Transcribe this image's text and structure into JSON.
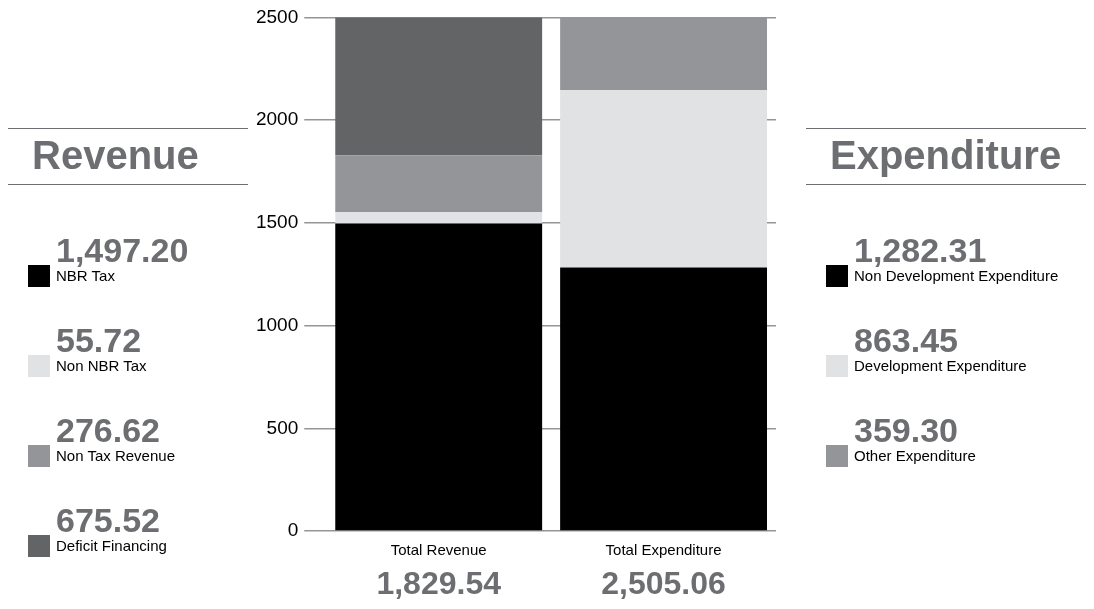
{
  "chart_data": {
    "type": "bar",
    "stacked": true,
    "categories": [
      "Total Revenue",
      "Total Expenditure"
    ],
    "series": [
      {
        "name": "NBR Tax",
        "color": "#000000",
        "values": [
          1497.2,
          null
        ]
      },
      {
        "name": "Non NBR Tax",
        "color": "#e1e2e3",
        "values": [
          55.72,
          null
        ]
      },
      {
        "name": "Non Tax Revenue",
        "color": "#939598",
        "values": [
          276.62,
          null
        ]
      },
      {
        "name": "Deficit Financing",
        "color": "#636466",
        "values": [
          675.52,
          null
        ]
      },
      {
        "name": "Non Development Expenditure",
        "color": "#000000",
        "values": [
          null,
          1282.31
        ]
      },
      {
        "name": "Development Expenditure",
        "color": "#e1e2e3",
        "values": [
          null,
          863.45
        ]
      },
      {
        "name": "Other  Expenditure",
        "color": "#939598",
        "values": [
          null,
          359.3
        ]
      }
    ],
    "annotations": [
      "Revenue",
      "Expenditure",
      "1,497.20",
      "55.72",
      "276.62",
      "675.52",
      "1,282.31",
      "863.45",
      "359.30",
      "1,829.54",
      "2,505.06"
    ],
    "ylim": [
      0,
      2500
    ],
    "yticks": [
      0,
      500,
      1000,
      1500,
      2000,
      2500
    ],
    "grid": "y",
    "legend": "left"
  }
}
